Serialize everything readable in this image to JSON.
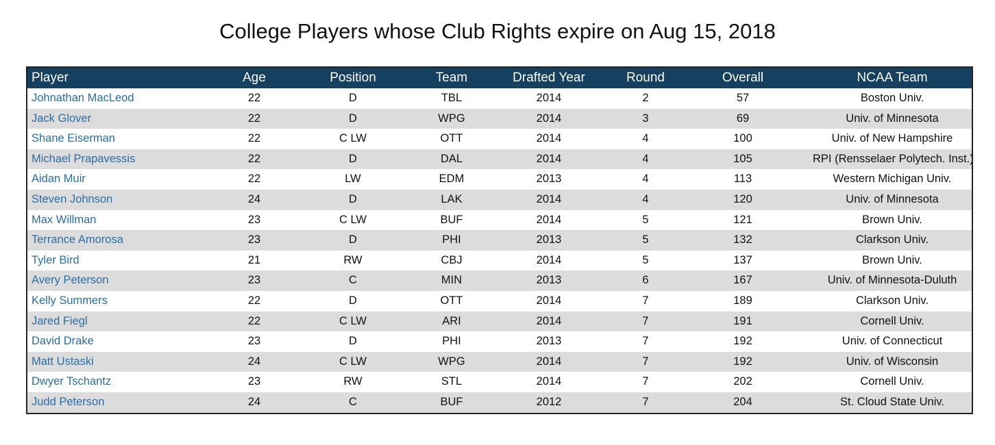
{
  "title": "College Players whose Club Rights expire on Aug 15, 2018",
  "columns": [
    "Player",
    "Age",
    "Position",
    "Team",
    "Drafted Year",
    "Round",
    "Overall",
    "NCAA Team"
  ],
  "rows": [
    [
      "Johnathan MacLeod",
      "22",
      "D",
      "TBL",
      "2014",
      "2",
      "57",
      "Boston Univ."
    ],
    [
      "Jack Glover",
      "22",
      "D",
      "WPG",
      "2014",
      "3",
      "69",
      "Univ. of Minnesota"
    ],
    [
      "Shane Eiserman",
      "22",
      "C LW",
      "OTT",
      "2014",
      "4",
      "100",
      "Univ. of New Hampshire"
    ],
    [
      "Michael Prapavessis",
      "22",
      "D",
      "DAL",
      "2014",
      "4",
      "105",
      "RPI (Rensselaer Polytech. Inst.)"
    ],
    [
      "Aidan Muir",
      "22",
      "LW",
      "EDM",
      "2013",
      "4",
      "113",
      "Western Michigan Univ."
    ],
    [
      "Steven Johnson",
      "24",
      "D",
      "LAK",
      "2014",
      "4",
      "120",
      "Univ. of Minnesota"
    ],
    [
      "Max Willman",
      "23",
      "C LW",
      "BUF",
      "2014",
      "5",
      "121",
      "Brown Univ."
    ],
    [
      "Terrance Amorosa",
      "23",
      "D",
      "PHI",
      "2013",
      "5",
      "132",
      "Clarkson Univ."
    ],
    [
      "Tyler Bird",
      "21",
      "RW",
      "CBJ",
      "2014",
      "5",
      "137",
      "Brown Univ."
    ],
    [
      "Avery Peterson",
      "23",
      "C",
      "MIN",
      "2013",
      "6",
      "167",
      "Univ. of Minnesota-Duluth"
    ],
    [
      "Kelly Summers",
      "22",
      "D",
      "OTT",
      "2014",
      "7",
      "189",
      "Clarkson Univ."
    ],
    [
      "Jared Fiegl",
      "22",
      "C LW",
      "ARI",
      "2014",
      "7",
      "191",
      "Cornell Univ."
    ],
    [
      "David Drake",
      "23",
      "D",
      "PHI",
      "2013",
      "7",
      "192",
      "Univ. of Connecticut"
    ],
    [
      "Matt Ustaski",
      "24",
      "C LW",
      "WPG",
      "2014",
      "7",
      "192",
      "Univ. of Wisconsin"
    ],
    [
      "Dwyer Tschantz",
      "23",
      "RW",
      "STL",
      "2014",
      "7",
      "202",
      "Cornell Univ."
    ],
    [
      "Judd Peterson",
      "24",
      "C",
      "BUF",
      "2012",
      "7",
      "204",
      "St. Cloud State Univ."
    ]
  ],
  "colors": {
    "header_bg": "#15405f",
    "header_text": "#ffffff",
    "player_link": "#2a6ea6",
    "row_alt": "#dcdcdc"
  }
}
